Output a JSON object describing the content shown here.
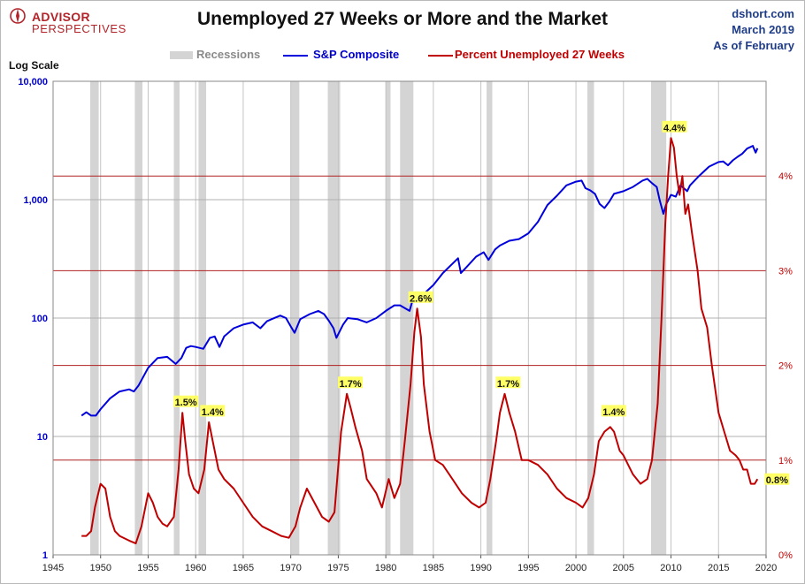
{
  "header": {
    "logo_line1": "ADVISOR",
    "logo_line2": "PERSPECTIVES",
    "title": "Unemployed 27 Weeks or More and the Market",
    "source": "dshort.com",
    "date": "March 2019",
    "asof": "As of February"
  },
  "legend": {
    "recessions": "Recessions",
    "sp": "S&P Composite",
    "unemp": "Percent Unemployed 27 Weeks"
  },
  "colors": {
    "sp": "#0000dd",
    "unemp": "#c00000",
    "recession": "#d4d4d4",
    "left_axis": "#0000cc",
    "right_axis": "#c00000",
    "callout": "#ffff66"
  },
  "chart_data": {
    "type": "line",
    "title": "Unemployed 27 Weeks or More and the Market",
    "left_axis": {
      "label": "Log Scale",
      "scale": "log",
      "range": [
        1,
        10000
      ],
      "ticks": [
        1,
        10,
        100,
        1000,
        10000
      ],
      "tick_labels": [
        "1",
        "10",
        "100",
        "1,000",
        "10,000"
      ]
    },
    "right_axis": {
      "label": "",
      "range": [
        0,
        5
      ],
      "ticks": [
        0,
        1,
        2,
        3,
        4
      ],
      "tick_labels": [
        "0%",
        "1%",
        "2%",
        "3%",
        "4%"
      ]
    },
    "x_axis": {
      "range": [
        1945,
        2020
      ],
      "ticks": [
        1945,
        1950,
        1955,
        1960,
        1965,
        1970,
        1975,
        1980,
        1985,
        1990,
        1995,
        2000,
        2005,
        2010,
        2015,
        2020
      ],
      "tick_labels": [
        "1945",
        "1950",
        "1955",
        "1960",
        "1965",
        "1970",
        "1975",
        "1980",
        "1985",
        "1990",
        "1995",
        "2000",
        "2005",
        "2010",
        "2015",
        "2020"
      ]
    },
    "recessions": [
      [
        1948.9,
        1949.8
      ],
      [
        1953.6,
        1954.4
      ],
      [
        1957.7,
        1958.3
      ],
      [
        1960.3,
        1961.1
      ],
      [
        1970.0,
        1970.9
      ],
      [
        1973.9,
        1975.2
      ],
      [
        1980.0,
        1980.5
      ],
      [
        1981.5,
        1982.9
      ],
      [
        1990.6,
        1991.2
      ],
      [
        2001.2,
        2001.9
      ],
      [
        2007.9,
        2009.5
      ]
    ],
    "series": [
      {
        "name": "S&P Composite",
        "axis": "left",
        "x": [
          1948.0,
          1948.5,
          1949.0,
          1949.5,
          1950.0,
          1951.0,
          1952.0,
          1953.0,
          1953.5,
          1954.0,
          1955.0,
          1956.0,
          1957.0,
          1957.9,
          1958.5,
          1959.0,
          1959.5,
          1960.0,
          1960.8,
          1961.5,
          1962.0,
          1962.5,
          1963.0,
          1964.0,
          1965.0,
          1966.0,
          1966.8,
          1967.5,
          1968.0,
          1968.9,
          1969.5,
          1970.0,
          1970.4,
          1971.0,
          1972.0,
          1972.9,
          1973.5,
          1974.0,
          1974.5,
          1974.8,
          1975.5,
          1976.0,
          1977.0,
          1978.0,
          1979.0,
          1980.0,
          1980.9,
          1981.5,
          1982.5,
          1983.0,
          1983.5,
          1984.0,
          1985.0,
          1986.0,
          1987.6,
          1987.9,
          1988.5,
          1989.5,
          1990.3,
          1990.8,
          1991.5,
          1992.0,
          1993.0,
          1994.0,
          1995.0,
          1996.0,
          1997.0,
          1998.0,
          1999.0,
          2000.0,
          2000.6,
          2001.0,
          2001.5,
          2002.0,
          2002.5,
          2003.0,
          2003.5,
          2004.0,
          2005.0,
          2006.0,
          2007.0,
          2007.5,
          2008.0,
          2008.5,
          2008.8,
          2009.2,
          2009.5,
          2010.0,
          2010.5,
          2011.0,
          2011.7,
          2012.0,
          2013.0,
          2014.0,
          2015.0,
          2015.5,
          2016.0,
          2016.5,
          2017.0,
          2017.5,
          2018.0,
          2018.6,
          2018.9,
          2019.1
        ],
        "values": [
          15,
          16,
          15,
          15,
          17,
          21,
          24,
          25,
          24,
          27,
          38,
          46,
          47,
          41,
          46,
          56,
          58,
          57,
          55,
          68,
          70,
          57,
          70,
          82,
          88,
          92,
          82,
          94,
          98,
          105,
          100,
          85,
          75,
          98,
          108,
          115,
          108,
          95,
          82,
          68,
          88,
          100,
          98,
          92,
          100,
          115,
          128,
          128,
          115,
          160,
          165,
          160,
          190,
          240,
          320,
          240,
          270,
          330,
          360,
          310,
          380,
          410,
          450,
          465,
          520,
          650,
          900,
          1080,
          1320,
          1420,
          1450,
          1250,
          1200,
          1120,
          920,
          850,
          960,
          1120,
          1180,
          1280,
          1450,
          1500,
          1380,
          1280,
          1000,
          760,
          920,
          1100,
          1060,
          1320,
          1180,
          1320,
          1600,
          1900,
          2080,
          2100,
          1950,
          2150,
          2300,
          2450,
          2700,
          2850,
          2500,
          2720
        ]
      },
      {
        "name": "Percent Unemployed 27 Weeks",
        "axis": "right",
        "x": [
          1948.0,
          1948.5,
          1949.0,
          1949.4,
          1950.0,
          1950.5,
          1951.0,
          1951.5,
          1952.0,
          1953.0,
          1953.7,
          1954.3,
          1955.0,
          1955.5,
          1956.0,
          1956.5,
          1957.0,
          1957.7,
          1958.2,
          1958.6,
          1958.9,
          1959.3,
          1959.8,
          1960.3,
          1960.9,
          1961.4,
          1961.8,
          1962.4,
          1963.0,
          1964.0,
          1965.0,
          1966.0,
          1967.0,
          1968.0,
          1969.0,
          1969.8,
          1970.5,
          1971.0,
          1971.7,
          1972.5,
          1973.3,
          1974.0,
          1974.6,
          1975.3,
          1975.9,
          1976.3,
          1976.8,
          1977.5,
          1978.0,
          1979.0,
          1979.6,
          1980.3,
          1980.9,
          1981.5,
          1982.0,
          1982.6,
          1983.0,
          1983.3,
          1983.7,
          1984.0,
          1984.6,
          1985.2,
          1986.0,
          1987.0,
          1988.0,
          1989.0,
          1989.8,
          1990.5,
          1991.0,
          1991.6,
          1992.0,
          1992.5,
          1993.0,
          1993.6,
          1994.3,
          1995.0,
          1996.0,
          1997.0,
          1998.0,
          1999.0,
          2000.0,
          2000.7,
          2001.3,
          2001.9,
          2002.4,
          2003.0,
          2003.6,
          2004.0,
          2004.6,
          2005.0,
          2006.0,
          2006.8,
          2007.5,
          2008.0,
          2008.6,
          2009.0,
          2009.4,
          2009.7,
          2010.0,
          2010.3,
          2010.6,
          2010.9,
          2011.2,
          2011.5,
          2011.8,
          2012.2,
          2012.8,
          2013.2,
          2013.8,
          2014.3,
          2015.0,
          2015.6,
          2016.2,
          2016.8,
          2017.2,
          2017.6,
          2018.0,
          2018.4,
          2018.8,
          2019.1
        ],
        "values": [
          0.2,
          0.2,
          0.25,
          0.5,
          0.75,
          0.7,
          0.4,
          0.25,
          0.2,
          0.15,
          0.12,
          0.3,
          0.65,
          0.55,
          0.4,
          0.33,
          0.3,
          0.4,
          0.9,
          1.5,
          1.2,
          0.85,
          0.7,
          0.65,
          0.9,
          1.4,
          1.2,
          0.9,
          0.8,
          0.7,
          0.55,
          0.4,
          0.3,
          0.25,
          0.2,
          0.18,
          0.3,
          0.5,
          0.7,
          0.55,
          0.4,
          0.35,
          0.45,
          1.3,
          1.7,
          1.55,
          1.35,
          1.1,
          0.8,
          0.65,
          0.5,
          0.8,
          0.6,
          0.75,
          1.2,
          1.8,
          2.35,
          2.6,
          2.3,
          1.8,
          1.3,
          1.0,
          0.95,
          0.8,
          0.65,
          0.55,
          0.5,
          0.55,
          0.8,
          1.2,
          1.5,
          1.7,
          1.5,
          1.3,
          1.0,
          1.0,
          0.95,
          0.85,
          0.7,
          0.6,
          0.55,
          0.5,
          0.6,
          0.85,
          1.2,
          1.3,
          1.35,
          1.3,
          1.1,
          1.05,
          0.85,
          0.75,
          0.8,
          1.0,
          1.6,
          2.5,
          3.5,
          4.0,
          4.4,
          4.3,
          4.0,
          3.8,
          4.0,
          3.6,
          3.7,
          3.4,
          3.0,
          2.6,
          2.4,
          2.0,
          1.5,
          1.3,
          1.1,
          1.05,
          1.0,
          0.9,
          0.9,
          0.75,
          0.75,
          0.8
        ]
      }
    ],
    "annotations": [
      {
        "label": "1.5%",
        "x": 1958.6,
        "y": 1.5
      },
      {
        "label": "1.4%",
        "x": 1961.4,
        "y": 1.4
      },
      {
        "label": "1.7%",
        "x": 1975.9,
        "y": 1.7
      },
      {
        "label": "2.6%",
        "x": 1983.3,
        "y": 2.6
      },
      {
        "label": "1.7%",
        "x": 1992.5,
        "y": 1.7
      },
      {
        "label": "1.4%",
        "x": 2003.6,
        "y": 1.4
      },
      {
        "label": "4.4%",
        "x": 2010.0,
        "y": 4.4
      },
      {
        "label": "0.8%",
        "x": 2019.1,
        "y": 0.8
      }
    ]
  }
}
